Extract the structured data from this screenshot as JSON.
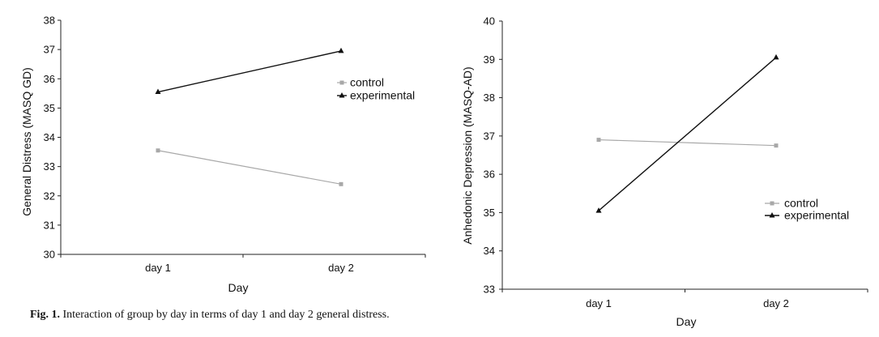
{
  "chart_data": [
    {
      "type": "line",
      "title": "",
      "xlabel": "Day",
      "ylabel": "General Distress (MASQ GD)",
      "categories": [
        "day 1",
        "day 2"
      ],
      "ylim": [
        30,
        38
      ],
      "yticks": [
        30,
        31,
        32,
        33,
        34,
        35,
        36,
        37,
        38
      ],
      "legend_position": "top-right",
      "series": [
        {
          "name": "control",
          "values": [
            33.55,
            32.4
          ],
          "color": "#a8a8a8",
          "marker": "square"
        },
        {
          "name": "experimental",
          "values": [
            35.55,
            36.95
          ],
          "color": "#111111",
          "marker": "triangle"
        }
      ]
    },
    {
      "type": "line",
      "title": "",
      "xlabel": "Day",
      "ylabel": "Anhedonic Depression (MASQ-AD)",
      "categories": [
        "day 1",
        "day 2"
      ],
      "ylim": [
        33,
        40
      ],
      "yticks": [
        33,
        34,
        35,
        36,
        37,
        38,
        39,
        40
      ],
      "legend_position": "right",
      "series": [
        {
          "name": "control",
          "values": [
            36.9,
            36.75
          ],
          "color": "#a8a8a8",
          "marker": "square"
        },
        {
          "name": "experimental",
          "values": [
            35.05,
            39.05
          ],
          "color": "#111111",
          "marker": "triangle"
        }
      ]
    }
  ],
  "caption": {
    "label": "Fig. 1.",
    "text": "Interaction of group by day in terms of day 1 and day 2 general distress."
  }
}
